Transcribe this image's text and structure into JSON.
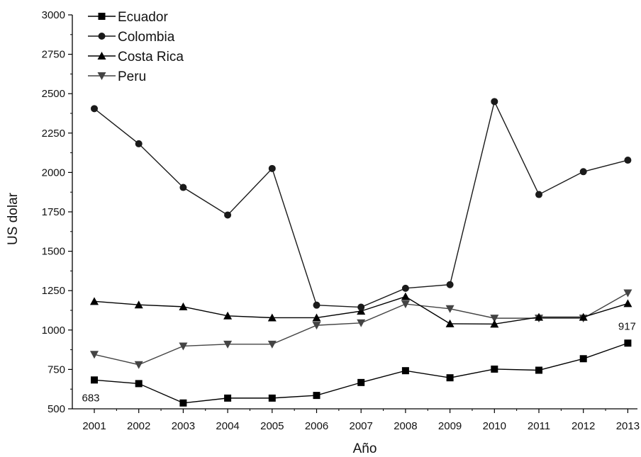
{
  "chart_data": {
    "type": "line",
    "title": "",
    "xlabel": "Año",
    "ylabel": "US dolar",
    "categories": [
      "2001",
      "2002",
      "2003",
      "2004",
      "2005",
      "2006",
      "2007",
      "2008",
      "2009",
      "2010",
      "2011",
      "2012",
      "2013"
    ],
    "ylim": [
      500,
      3000
    ],
    "yticks": [
      500,
      750,
      1000,
      1250,
      1500,
      1750,
      2000,
      2250,
      2500,
      2750,
      3000
    ],
    "grid": false,
    "legend_position": "top-left",
    "series": [
      {
        "name": "Ecuador",
        "marker": "square",
        "color": "#000000",
        "values": [
          683,
          660,
          537,
          568,
          568,
          585,
          667,
          742,
          697,
          752,
          745,
          818,
          917
        ]
      },
      {
        "name": "Colombia",
        "marker": "circle",
        "color": "#1a1a1a",
        "values": [
          2405,
          2182,
          1905,
          1730,
          2025,
          1158,
          1145,
          1265,
          1288,
          2450,
          1860,
          2005,
          2078
        ]
      },
      {
        "name": "Costa Rica",
        "marker": "triangle-up",
        "color": "#000000",
        "values": [
          1182,
          1160,
          1148,
          1090,
          1078,
          1078,
          1120,
          1212,
          1040,
          1038,
          1082,
          1082,
          1168
        ]
      },
      {
        "name": "Peru",
        "marker": "triangle-down",
        "color": "#444444",
        "values": [
          845,
          780,
          898,
          910,
          910,
          1030,
          1045,
          1165,
          1135,
          1075,
          1075,
          1075,
          1235
        ]
      }
    ],
    "annotations": [
      {
        "text": "683",
        "series": "Ecuador",
        "category": "2001"
      },
      {
        "text": "917",
        "series": "Ecuador",
        "category": "2013"
      }
    ]
  }
}
